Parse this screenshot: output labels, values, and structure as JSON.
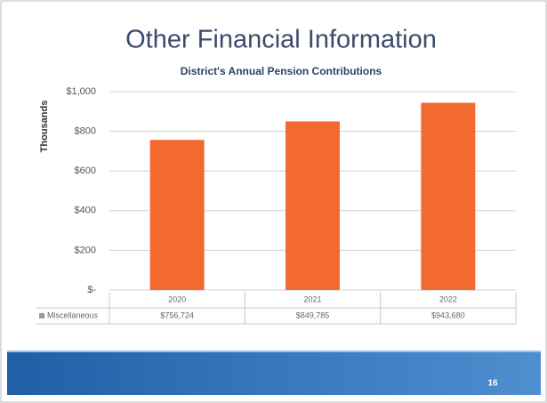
{
  "slide": {
    "title": "Other Financial Information",
    "page_number": "16"
  },
  "chart_data": {
    "type": "bar",
    "title": "District's Annual Pension Contributions",
    "y_label": "Thousands",
    "categories": [
      "2020",
      "2021",
      "2022"
    ],
    "series": [
      {
        "name": "Miscellaneous",
        "color": "#f26a30",
        "values": [
          756.724,
          849.785,
          943.68
        ],
        "value_labels": [
          "$756,724",
          "$849,785",
          "$943,680"
        ]
      }
    ],
    "ylim": [
      0,
      1000
    ],
    "yticks": [
      {
        "value": 0,
        "label": "$-"
      },
      {
        "value": 200,
        "label": "$200"
      },
      {
        "value": 400,
        "label": "$400"
      },
      {
        "value": 600,
        "label": "$600"
      },
      {
        "value": 800,
        "label": "$800"
      },
      {
        "value": 1000,
        "label": "$1,000"
      }
    ],
    "grid": true
  }
}
